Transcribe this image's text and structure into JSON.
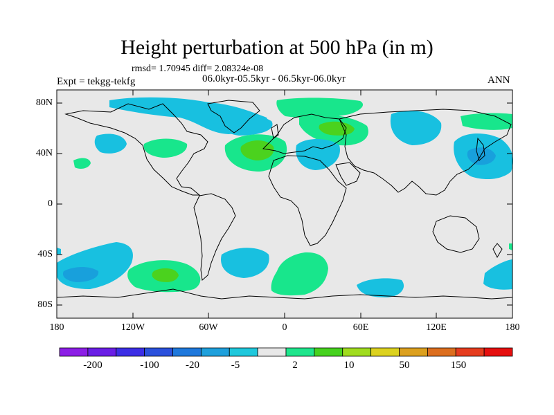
{
  "header": {
    "title": "Height perturbation at 500 hPa (in m)",
    "stats": "rmsd= 1.70945 diff= 2.08324e-08",
    "experiment": "Expt = tekgg-tekfg",
    "period": "06.0kyr-05.5kyr - 06.5kyr-06.0kyr",
    "season": "ANN"
  },
  "axes": {
    "lat_labels": [
      "80N",
      "40N",
      "0",
      "40S",
      "80S"
    ],
    "lon_labels": [
      "180",
      "120W",
      "60W",
      "0",
      "60E",
      "120E",
      "180"
    ]
  },
  "colorbar": {
    "labels": [
      "-200",
      "-100",
      "-20",
      "-5",
      "2",
      "10",
      "50",
      "150"
    ],
    "colors": [
      "#8c1ee6",
      "#6a1ee6",
      "#3c2ee6",
      "#2a50dc",
      "#1e78dc",
      "#1ea0dc",
      "#1ec8dc",
      "#e8e8e8",
      "#1ee68c",
      "#46d21e",
      "#a0dc1e",
      "#dcd21e",
      "#dca01e",
      "#dc6e1e",
      "#e63c1e",
      "#e60f0f"
    ]
  },
  "map_colors": {
    "background": "#e8e8e8",
    "light_blue": "#18c0e0",
    "mid_blue": "#18a0dc",
    "light_green": "#18e68c",
    "mid_green": "#4bd21e"
  }
}
